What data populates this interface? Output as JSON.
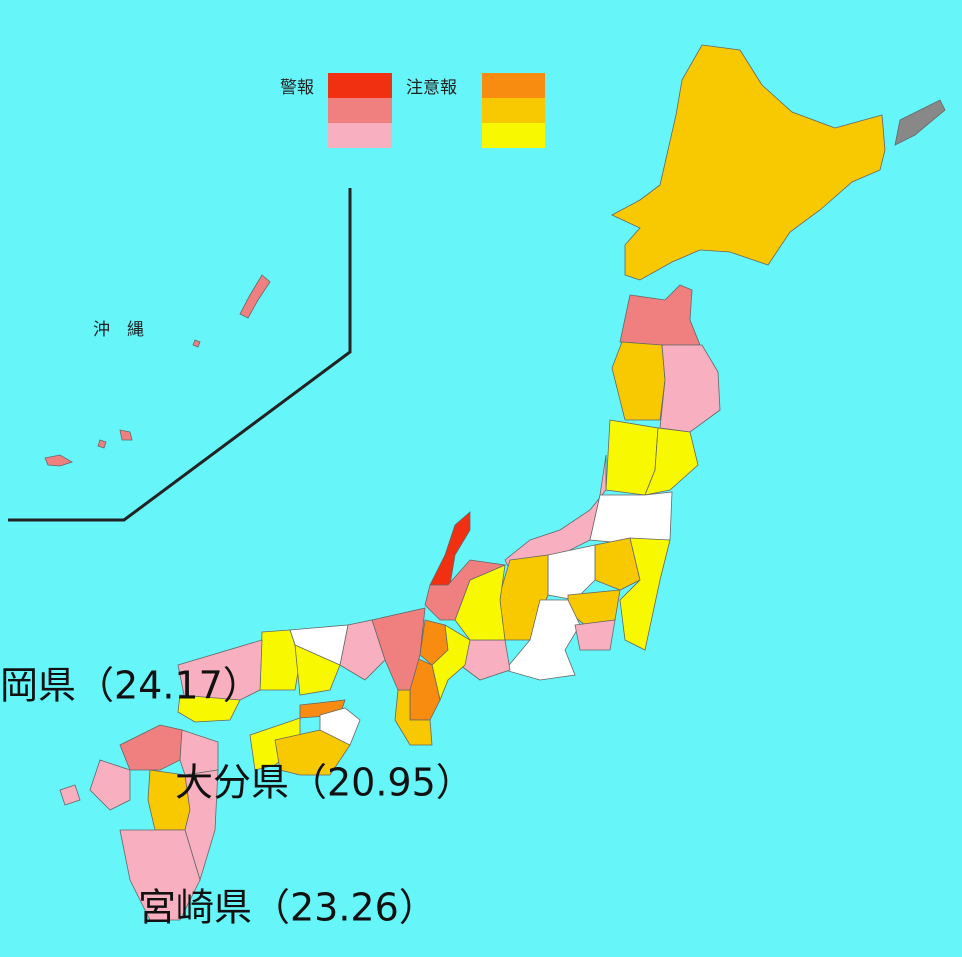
{
  "legend": {
    "warning": "警報",
    "advisory": "注意報"
  },
  "inset_label": "沖　縄",
  "annotations": [
    "岡県（24.17）",
    "大分県（20.95）",
    "宮崎県（23.26）"
  ]
}
